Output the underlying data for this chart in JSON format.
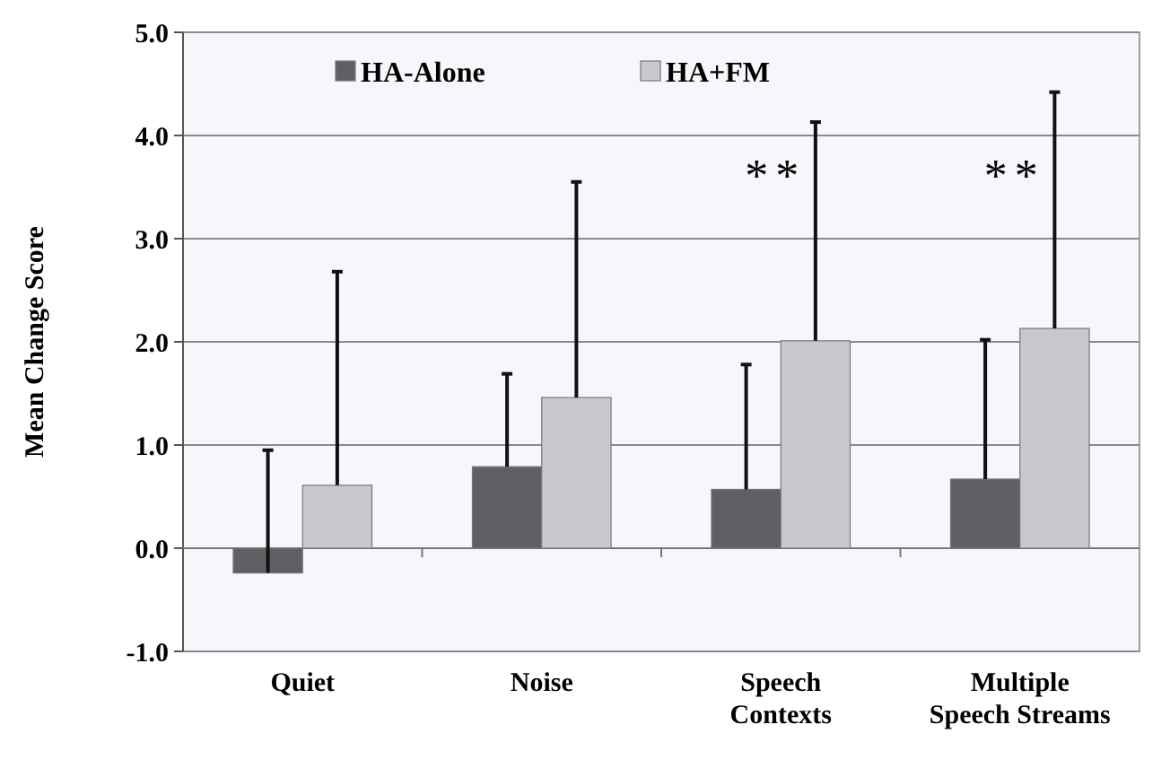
{
  "chart_data": {
    "type": "bar",
    "ylabel": "Mean Change Score",
    "categories": [
      "Quiet",
      "Noise",
      "Speech Contexts",
      "Multiple Speech Streams"
    ],
    "series": [
      {
        "name": "HA-Alone",
        "color": "#606064",
        "values": [
          -0.24,
          0.79,
          0.57,
          0.67
        ],
        "errors": [
          [
            -0.24,
            0.95
          ],
          [
            0.79,
            1.69
          ],
          [
            0.57,
            1.78
          ],
          [
            0.67,
            2.02
          ]
        ]
      },
      {
        "name": "HA+FM",
        "color": "#c8c9cd",
        "values": [
          0.61,
          1.46,
          2.01,
          2.13
        ],
        "errors": [
          [
            0.61,
            2.68
          ],
          [
            1.46,
            3.55
          ],
          [
            2.01,
            4.13
          ],
          [
            2.13,
            4.42
          ]
        ]
      }
    ],
    "ylim": [
      -1,
      5
    ],
    "yticks": [
      {
        "value": -1,
        "label": "-1.0"
      },
      {
        "value": 0,
        "label": "0.0"
      },
      {
        "value": 1,
        "label": "1.0"
      },
      {
        "value": 2,
        "label": "2.0"
      },
      {
        "value": 3,
        "label": "3.0"
      },
      {
        "value": 4,
        "label": "4.0"
      },
      {
        "value": 5,
        "label": "5.0"
      }
    ],
    "grid": "y",
    "legend": "top left",
    "annotations": [
      "**",
      "**"
    ]
  }
}
